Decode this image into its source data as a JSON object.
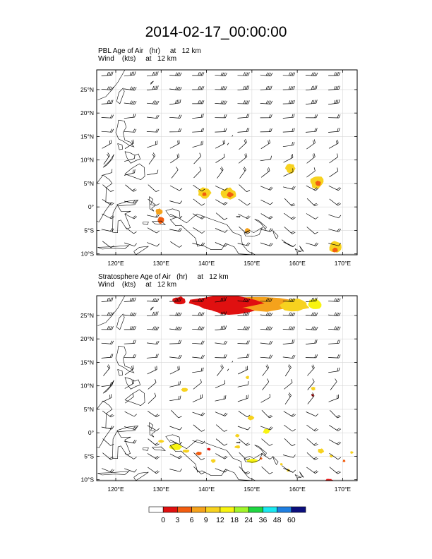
{
  "title": "2014-02-17_00:00:00",
  "panels": [
    {
      "id": "pbl",
      "label_line1": "PBL Age of Air   (hr)     at   12 km",
      "label_line2": "Wind    (kts)     at   12 km",
      "blobs": [
        {
          "lon": 158.5,
          "lat": 8.2,
          "w": 2.2,
          "h": 2.0,
          "level": 4
        },
        {
          "lon": 164.3,
          "lat": 5.3,
          "w": 3.0,
          "h": 2.7,
          "level": 4
        },
        {
          "lon": 164.6,
          "lat": 5.0,
          "w": 1.2,
          "h": 1.2,
          "level": 2
        },
        {
          "lon": 139.5,
          "lat": 3.0,
          "w": 3.0,
          "h": 2.4,
          "level": 4
        },
        {
          "lon": 139.5,
          "lat": 2.7,
          "w": 1.0,
          "h": 0.9,
          "level": 2
        },
        {
          "lon": 144.8,
          "lat": 2.8,
          "w": 3.5,
          "h": 2.5,
          "level": 4
        },
        {
          "lon": 145.2,
          "lat": 2.6,
          "w": 1.4,
          "h": 1.1,
          "level": 2
        },
        {
          "lon": 129.5,
          "lat": -1.0,
          "w": 1.6,
          "h": 1.3,
          "level": 3
        },
        {
          "lon": 130.0,
          "lat": -2.8,
          "w": 1.4,
          "h": 1.6,
          "level": 2
        },
        {
          "lon": 149.0,
          "lat": -5.0,
          "w": 1.2,
          "h": 1.0,
          "level": 3
        },
        {
          "lon": 168.5,
          "lat": -8.6,
          "w": 2.8,
          "h": 2.6,
          "level": 4
        },
        {
          "lon": 168.3,
          "lat": -9.2,
          "w": 1.4,
          "h": 1.0,
          "level": 2
        }
      ]
    },
    {
      "id": "strat",
      "label_line1": "Stratosphere Age of Air   (hr)     at   12 km",
      "label_line2": "Wind    (kts)     at   12 km",
      "blobs": [
        {
          "lon": 151.0,
          "lat": 27.6,
          "w": 19.0,
          "h": 3.3,
          "level": 3
        },
        {
          "lon": 159.5,
          "lat": 27.2,
          "w": 6.5,
          "h": 2.6,
          "level": 4
        },
        {
          "lon": 163.8,
          "lat": 27.4,
          "w": 3.2,
          "h": 2.2,
          "level": 5
        },
        {
          "lon": 144.0,
          "lat": 27.6,
          "w": 15.5,
          "h": 3.2,
          "level": 1
        },
        {
          "lon": 146.0,
          "lat": 26.0,
          "w": 9.0,
          "h": 1.6,
          "level": 1
        },
        {
          "lon": 134.0,
          "lat": 28.2,
          "w": 3.0,
          "h": 1.6,
          "level": 1
        },
        {
          "lon": 135.2,
          "lat": 9.2,
          "w": 1.6,
          "h": 0.9,
          "level": 4
        },
        {
          "lon": 149.0,
          "lat": 11.8,
          "w": 0.8,
          "h": 0.7,
          "level": 4
        },
        {
          "lon": 163.5,
          "lat": 9.4,
          "w": 1.0,
          "h": 0.9,
          "level": 4
        },
        {
          "lon": 163.4,
          "lat": 8.0,
          "w": 0.5,
          "h": 0.6,
          "level": 1
        },
        {
          "lon": 149.8,
          "lat": 3.2,
          "w": 1.5,
          "h": 1.1,
          "level": 4
        },
        {
          "lon": 153.2,
          "lat": 0.3,
          "w": 1.6,
          "h": 1.1,
          "level": 5
        },
        {
          "lon": 146.8,
          "lat": -0.6,
          "w": 1.0,
          "h": 0.7,
          "level": 4
        },
        {
          "lon": 130.0,
          "lat": -1.8,
          "w": 1.4,
          "h": 0.7,
          "level": 4
        },
        {
          "lon": 133.2,
          "lat": -3.0,
          "w": 2.8,
          "h": 1.3,
          "level": 5
        },
        {
          "lon": 135.5,
          "lat": -3.9,
          "w": 1.6,
          "h": 0.7,
          "level": 4
        },
        {
          "lon": 138.3,
          "lat": -4.4,
          "w": 1.4,
          "h": 0.8,
          "level": 2
        },
        {
          "lon": 141.5,
          "lat": -6.0,
          "w": 1.1,
          "h": 0.8,
          "level": 4
        },
        {
          "lon": 146.8,
          "lat": -3.0,
          "w": 1.2,
          "h": 0.7,
          "level": 4
        },
        {
          "lon": 150.2,
          "lat": -6.0,
          "w": 2.5,
          "h": 1.0,
          "level": 5
        },
        {
          "lon": 152.0,
          "lat": -5.5,
          "w": 0.6,
          "h": 0.5,
          "level": 2
        },
        {
          "lon": 156.5,
          "lat": -6.7,
          "w": 0.6,
          "h": 0.5,
          "level": 4
        },
        {
          "lon": 158.0,
          "lat": -8.0,
          "w": 0.8,
          "h": 0.6,
          "level": 4
        },
        {
          "lon": 165.2,
          "lat": -3.9,
          "w": 1.4,
          "h": 1.1,
          "level": 4
        },
        {
          "lon": 167.5,
          "lat": -5.0,
          "w": 0.8,
          "h": 0.6,
          "level": 4
        },
        {
          "lon": 170.3,
          "lat": -6.0,
          "w": 0.6,
          "h": 0.6,
          "level": 2
        },
        {
          "lon": 172.0,
          "lat": -4.2,
          "w": 0.7,
          "h": 0.6,
          "level": 4
        },
        {
          "lon": 167.0,
          "lat": -10.1,
          "w": 1.6,
          "h": 0.6,
          "level": 1
        },
        {
          "lon": 140.5,
          "lat": -3.5,
          "w": 0.8,
          "h": 0.6,
          "level": 1
        }
      ]
    }
  ],
  "axes": {
    "lon_min": 115.8,
    "lon_max": 173.2,
    "lat_min": -10.2,
    "lat_max": 29.2,
    "lon_ticks": [
      120,
      130,
      140,
      150,
      160,
      170
    ],
    "lon_labels": [
      "120°E",
      "130°E",
      "140°E",
      "150°E",
      "160°E",
      "170°E"
    ],
    "lat_ticks": [
      25,
      20,
      15,
      10,
      5,
      0,
      -5,
      -10
    ],
    "lat_labels": [
      "25°N",
      "20°N",
      "15°N",
      "10°N",
      "5°N",
      "0°",
      "5°S",
      "10°S"
    ]
  },
  "colorbar": {
    "labels": [
      "0",
      "3",
      "6",
      "9",
      "12",
      "18",
      "24",
      "36",
      "48",
      "60"
    ],
    "colors": [
      "#ffffff",
      "#e01010",
      "#f25d10",
      "#f5a21c",
      "#f7d21f",
      "#f8f410",
      "#a2f52a",
      "#20d642",
      "#19e8f0",
      "#1f7fe0",
      "#0b0f7d"
    ]
  },
  "wind": {
    "barb_color": "#000000",
    "lon_spacing": 5.0,
    "lat_spacing": 3.0
  },
  "coast_color": "#000000",
  "grid_color": "#d7d7d7"
}
